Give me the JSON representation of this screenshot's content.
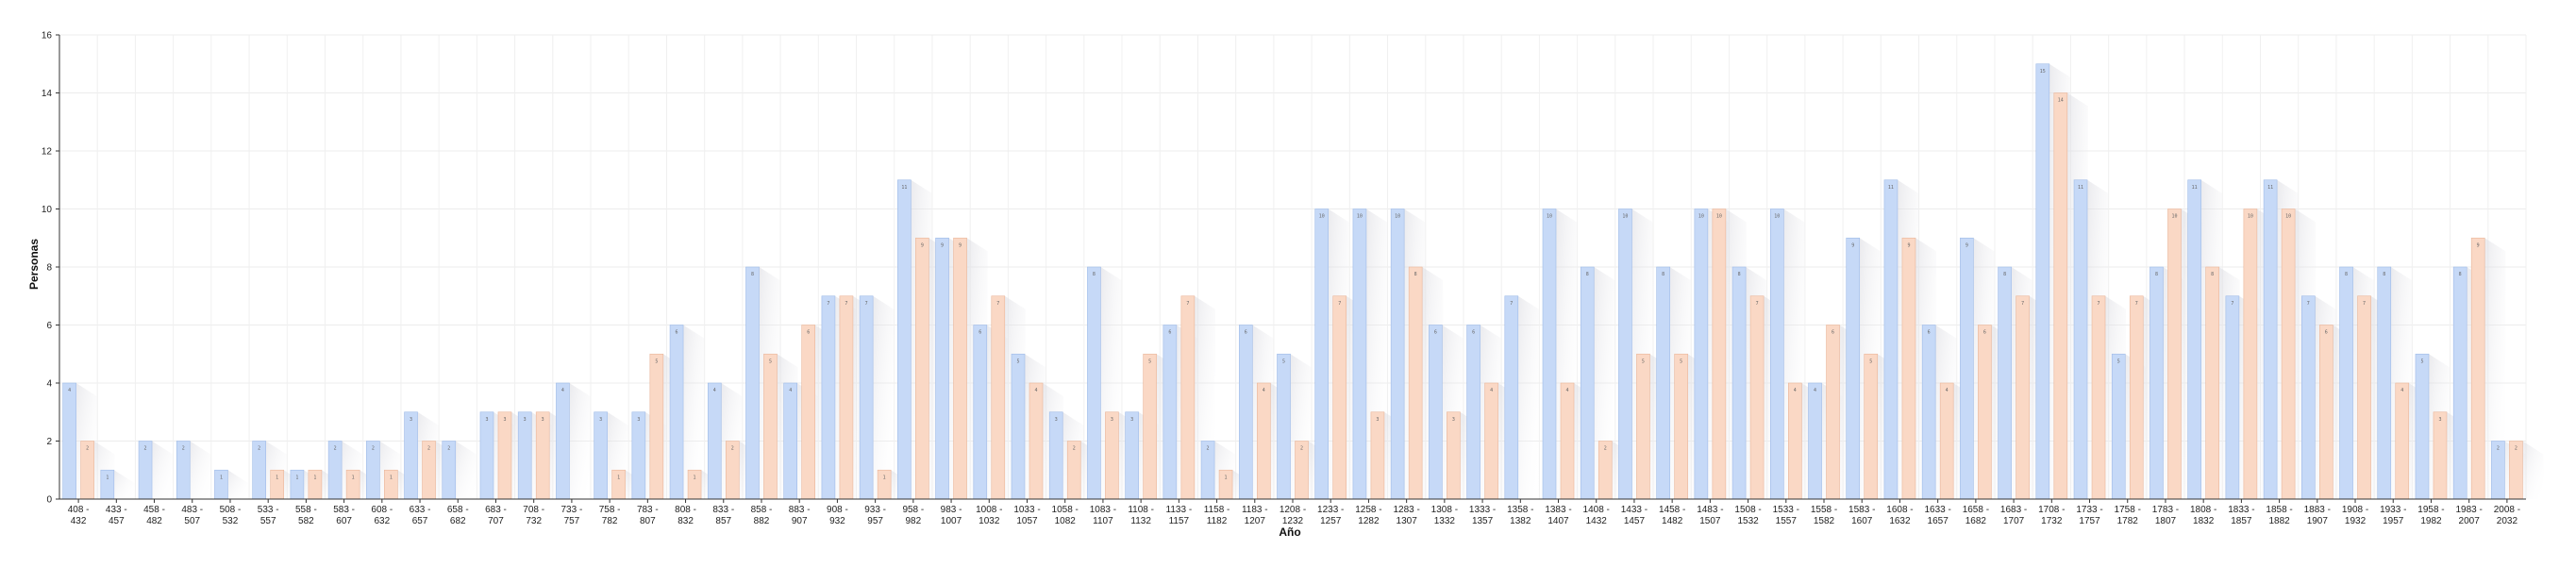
{
  "chart_data": {
    "type": "bar",
    "title": "",
    "xlabel": "Año",
    "ylabel": "Personas",
    "ylim": [
      0,
      16
    ],
    "yticks": [
      0,
      2,
      4,
      6,
      8,
      10,
      12,
      14,
      16
    ],
    "grid": true,
    "legend": "none",
    "categories": [
      "408 - 432",
      "433 - 457",
      "458 - 482",
      "483 - 507",
      "508 - 532",
      "533 - 557",
      "558 - 582",
      "583 - 607",
      "608 - 632",
      "633 - 657",
      "658 - 682",
      "683 - 707",
      "708 - 732",
      "733 - 757",
      "758 - 782",
      "783 - 807",
      "808 - 832",
      "833 - 857",
      "858 - 882",
      "883 - 907",
      "908 - 932",
      "933 - 957",
      "958 - 982",
      "983 - 1007",
      "1008 - 1032",
      "1033 - 1057",
      "1058 - 1082",
      "1083 - 1107",
      "1108 - 1132",
      "1133 - 1157",
      "1158 - 1182",
      "1183 - 1207",
      "1208 - 1232",
      "1233 - 1257",
      "1258 - 1282",
      "1283 - 1307",
      "1308 - 1332",
      "1333 - 1357",
      "1358 - 1382",
      "1383 - 1407",
      "1408 - 1432",
      "1433 - 1457",
      "1458 - 1482",
      "1483 - 1507",
      "1508 - 1532",
      "1533 - 1557",
      "1558 - 1582",
      "1583 - 1607",
      "1608 - 1632",
      "1633 - 1657",
      "1658 - 1682",
      "1683 - 1707",
      "1708 - 1732",
      "1733 - 1757",
      "1758 - 1782",
      "1783 - 1807",
      "1808 - 1832",
      "1833 - 1857",
      "1858 - 1882",
      "1883 - 1907",
      "1908 - 1932",
      "1933 - 1957",
      "1958 - 1982",
      "1983 - 2007",
      "2008 - 2032"
    ],
    "series": [
      {
        "color": "#c6d9f7",
        "stroke": "#9fbbe8",
        "values": [
          4,
          1,
          2,
          2,
          1,
          2,
          1,
          2,
          2,
          3,
          2,
          3,
          3,
          4,
          3,
          3,
          6,
          4,
          8,
          4,
          7,
          7,
          11,
          9,
          6,
          5,
          3,
          8,
          3,
          6,
          2,
          6,
          5,
          10,
          10,
          10,
          6,
          6,
          7,
          10,
          8,
          10,
          8,
          10,
          8,
          10,
          4,
          9,
          11,
          6,
          9,
          8,
          15,
          11,
          5,
          8,
          11,
          7,
          11,
          7,
          8,
          8,
          5,
          8,
          2
        ]
      },
      {
        "color": "#fad8c5",
        "stroke": "#eab69a",
        "values": [
          2,
          0,
          0,
          0,
          0,
          1,
          1,
          1,
          1,
          2,
          0,
          3,
          3,
          0,
          1,
          5,
          1,
          2,
          5,
          6,
          7,
          1,
          9,
          9,
          7,
          4,
          2,
          3,
          5,
          7,
          1,
          4,
          2,
          7,
          3,
          8,
          3,
          4,
          0,
          4,
          2,
          5,
          5,
          10,
          7,
          4,
          6,
          5,
          9,
          4,
          6,
          7,
          14,
          7,
          7,
          10,
          8,
          10,
          10,
          6,
          7,
          4,
          3,
          9,
          2
        ]
      }
    ]
  }
}
